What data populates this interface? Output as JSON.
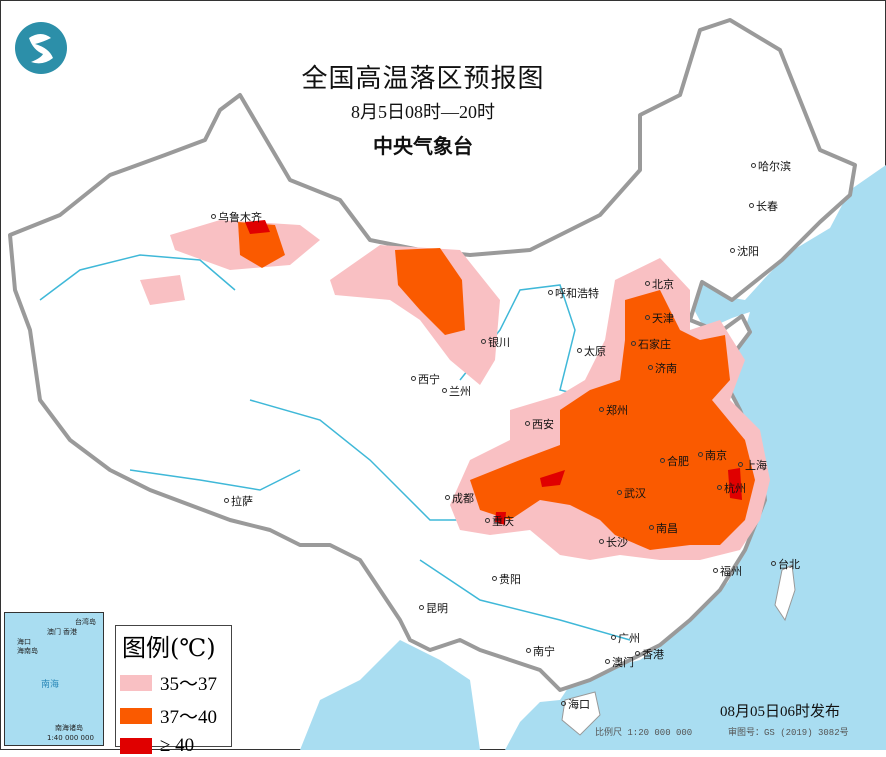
{
  "title": "全国高温落区预报图",
  "period": "8月5日08时—20时",
  "agency": "中央气象台",
  "legend": {
    "title": "图例(℃)",
    "items": [
      {
        "label": "35～37",
        "color": "#f9c0c3"
      },
      {
        "label": "37～40",
        "color": "#fa5a00"
      },
      {
        "label": "≥ 40",
        "color": "#e00000"
      }
    ]
  },
  "colors": {
    "sea": "#a9ddf1",
    "land": "#ffffff",
    "border": "#999999",
    "river": "#3fb8d8"
  },
  "cities": [
    "乌鲁木齐",
    "哈尔滨",
    "长春",
    "沈阳",
    "呼和浩特",
    "北京",
    "天津",
    "石家庄",
    "太原",
    "银川",
    "济南",
    "西宁",
    "兰州",
    "郑州",
    "西安",
    "合肥",
    "南京",
    "上海",
    "成都",
    "武汉",
    "杭州",
    "重庆",
    "长沙",
    "南昌",
    "拉萨",
    "贵阳",
    "福州",
    "台北",
    "昆明",
    "南宁",
    "广州",
    "香港",
    "澳门",
    "海口"
  ],
  "inset": {
    "labels": [
      "澳门",
      "香港",
      "台湾岛",
      "海口",
      "海南岛",
      "南海",
      "南海诸岛"
    ],
    "scale": "1:40 000 000"
  },
  "issued": "08月05日06时发布",
  "scale": "比例尺 1:20 000 000",
  "review": "审图号：GS (2019) 3082号",
  "logo_icon": "cma-logo-icon"
}
